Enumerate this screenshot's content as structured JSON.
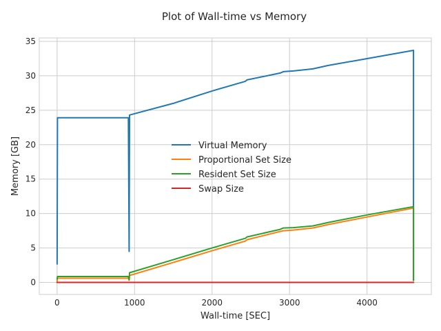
{
  "chart_data": {
    "type": "line",
    "title": "Plot of Wall-time vs Memory",
    "xlabel": "Wall-time [SEC]",
    "ylabel": "Memory [GB]",
    "xlim": [
      -230,
      4830
    ],
    "ylim": [
      -1.75,
      35.5
    ],
    "xticks": [
      0,
      1000,
      2000,
      3000,
      4000
    ],
    "yticks": [
      0,
      5,
      10,
      15,
      20,
      25,
      30,
      35
    ],
    "grid": true,
    "legend": "center",
    "series": [
      {
        "name": "Virtual Memory",
        "color": "#1f77b4",
        "points": [
          [
            0,
            2.7
          ],
          [
            5,
            23.9
          ],
          [
            920,
            23.9
          ],
          [
            930,
            4.5
          ],
          [
            935,
            24.3
          ],
          [
            1500,
            26.0
          ],
          [
            2000,
            27.8
          ],
          [
            2430,
            29.2
          ],
          [
            2450,
            29.4
          ],
          [
            2880,
            30.4
          ],
          [
            2920,
            30.6
          ],
          [
            3050,
            30.7
          ],
          [
            3300,
            31.0
          ],
          [
            3500,
            31.5
          ],
          [
            4000,
            32.5
          ],
          [
            4600,
            33.7
          ],
          [
            4600,
            0.3
          ]
        ]
      },
      {
        "name": "Proportional Set Size",
        "color": "#ff7f0e",
        "points": [
          [
            0,
            0.2
          ],
          [
            5,
            0.6
          ],
          [
            920,
            0.6
          ],
          [
            930,
            0.3
          ],
          [
            935,
            1.0
          ],
          [
            1500,
            2.9
          ],
          [
            2000,
            4.6
          ],
          [
            2430,
            6.0
          ],
          [
            2450,
            6.2
          ],
          [
            2880,
            7.4
          ],
          [
            2920,
            7.5
          ],
          [
            3050,
            7.6
          ],
          [
            3300,
            7.9
          ],
          [
            3500,
            8.4
          ],
          [
            4000,
            9.5
          ],
          [
            4600,
            10.8
          ],
          [
            4600,
            0.3
          ]
        ]
      },
      {
        "name": "Resident Set Size",
        "color": "#2ca02c",
        "points": [
          [
            0,
            0.5
          ],
          [
            5,
            0.85
          ],
          [
            920,
            0.85
          ],
          [
            930,
            0.4
          ],
          [
            935,
            1.4
          ],
          [
            1500,
            3.3
          ],
          [
            2000,
            5.0
          ],
          [
            2430,
            6.4
          ],
          [
            2450,
            6.6
          ],
          [
            2880,
            7.7
          ],
          [
            2920,
            7.9
          ],
          [
            3050,
            7.95
          ],
          [
            3300,
            8.2
          ],
          [
            3500,
            8.7
          ],
          [
            4000,
            9.8
          ],
          [
            4600,
            11.0
          ],
          [
            4600,
            0.3
          ]
        ]
      },
      {
        "name": "Swap Size",
        "color": "#d62728",
        "points": [
          [
            0,
            0
          ],
          [
            4600,
            0
          ]
        ]
      }
    ]
  }
}
